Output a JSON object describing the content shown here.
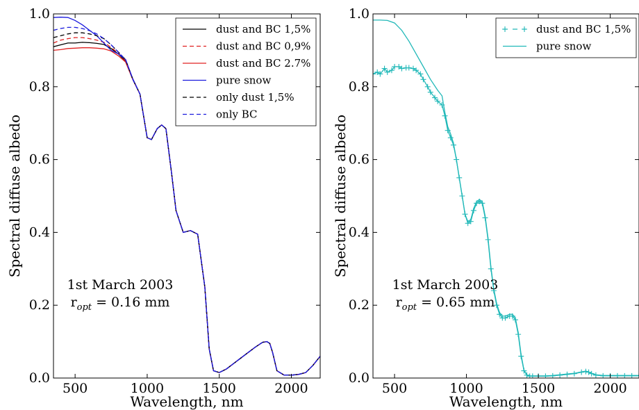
{
  "chart_data": [
    {
      "type": "line",
      "xlabel": "Wavelength, nm",
      "ylabel": "Spectral diffuse albedo",
      "xlim": [
        350,
        2200
      ],
      "ylim": [
        0,
        1.0
      ],
      "xticks": [
        500,
        1000,
        1500,
        2000
      ],
      "xtick_labels": [
        "500",
        "1000",
        "1500",
        "2000"
      ],
      "yticks": [
        0,
        0.2,
        0.4,
        0.6,
        0.8,
        1.0
      ],
      "ytick_labels": [
        "0.0",
        "0.2",
        "0.4",
        "0.6",
        "0.8",
        "1.0"
      ],
      "grid": false,
      "legend_position": "top-right",
      "annotation": {
        "line1": "1st March 2003",
        "line2_prefix": "r",
        "line2_sub": "opt",
        "line2_suffix": " = 0.16 mm"
      },
      "series": [
        {
          "name": "dust and BC 1,5%",
          "color": "#000000",
          "dash": "solid",
          "x": [
            350,
            400,
            450,
            500,
            550,
            600,
            650,
            700,
            750,
            800,
            850,
            900,
            950,
            1000,
            1030,
            1070,
            1100,
            1130,
            1170,
            1200,
            1250,
            1300,
            1350,
            1400,
            1430,
            1460,
            1500,
            1550,
            1600,
            1650,
            1700,
            1750,
            1800,
            1830,
            1850,
            1870,
            1900,
            1950,
            2000,
            2050,
            2100,
            2150,
            2200
          ],
          "y": [
            0.91,
            0.915,
            0.92,
            0.92,
            0.922,
            0.921,
            0.919,
            0.916,
            0.905,
            0.89,
            0.87,
            0.82,
            0.78,
            0.66,
            0.655,
            0.685,
            0.695,
            0.685,
            0.56,
            0.46,
            0.4,
            0.405,
            0.395,
            0.25,
            0.08,
            0.02,
            0.015,
            0.025,
            0.04,
            0.055,
            0.07,
            0.085,
            0.098,
            0.1,
            0.095,
            0.07,
            0.02,
            0.008,
            0.008,
            0.01,
            0.015,
            0.035,
            0.06
          ]
        },
        {
          "name": "dust and BC 0,9%",
          "color": "#e02020",
          "dash": "dashed",
          "x": [
            350,
            400,
            450,
            500,
            550,
            600,
            650,
            700,
            750,
            800,
            850,
            900,
            950,
            1000,
            1030,
            1070,
            1100,
            1130,
            1170,
            1200,
            1250,
            1300,
            1350,
            1400,
            1430,
            1460,
            1500,
            1550,
            1600,
            1650,
            1700,
            1750,
            1800,
            1830,
            1850,
            1870,
            1900,
            1950,
            2000,
            2050,
            2100,
            2150,
            2200
          ],
          "y": [
            0.92,
            0.928,
            0.932,
            0.935,
            0.935,
            0.932,
            0.928,
            0.922,
            0.908,
            0.892,
            0.872,
            0.82,
            0.78,
            0.66,
            0.655,
            0.685,
            0.695,
            0.685,
            0.56,
            0.46,
            0.4,
            0.405,
            0.395,
            0.25,
            0.08,
            0.02,
            0.015,
            0.025,
            0.04,
            0.055,
            0.07,
            0.085,
            0.098,
            0.1,
            0.095,
            0.07,
            0.02,
            0.008,
            0.008,
            0.01,
            0.015,
            0.035,
            0.06
          ]
        },
        {
          "name": "dust and BC 2.7%",
          "color": "#e02020",
          "dash": "solid",
          "x": [
            350,
            400,
            450,
            500,
            550,
            600,
            650,
            700,
            750,
            800,
            850,
            900,
            950,
            1000,
            1030,
            1070,
            1100,
            1130,
            1170,
            1200,
            1250,
            1300,
            1350,
            1400,
            1430,
            1460,
            1500,
            1550,
            1600,
            1650,
            1700,
            1750,
            1800,
            1830,
            1850,
            1870,
            1900,
            1950,
            2000,
            2050,
            2100,
            2150,
            2200
          ],
          "y": [
            0.9,
            0.902,
            0.905,
            0.906,
            0.907,
            0.907,
            0.906,
            0.904,
            0.898,
            0.885,
            0.868,
            0.82,
            0.78,
            0.66,
            0.655,
            0.685,
            0.695,
            0.685,
            0.56,
            0.46,
            0.4,
            0.405,
            0.395,
            0.25,
            0.08,
            0.02,
            0.015,
            0.025,
            0.04,
            0.055,
            0.07,
            0.085,
            0.098,
            0.1,
            0.095,
            0.07,
            0.02,
            0.008,
            0.008,
            0.01,
            0.015,
            0.035,
            0.06
          ]
        },
        {
          "name": "pure snow",
          "color": "#1a1add",
          "dash": "solid",
          "x": [
            350,
            400,
            450,
            500,
            550,
            600,
            650,
            700,
            750,
            800,
            850,
            900,
            950,
            1000,
            1030,
            1070,
            1100,
            1130,
            1170,
            1200,
            1250,
            1300,
            1350,
            1400,
            1430,
            1460,
            1500,
            1550,
            1600,
            1650,
            1700,
            1750,
            1800,
            1830,
            1850,
            1870,
            1900,
            1950,
            2000,
            2050,
            2100,
            2150,
            2200
          ],
          "y": [
            0.99,
            0.991,
            0.99,
            0.982,
            0.97,
            0.955,
            0.94,
            0.92,
            0.9,
            0.89,
            0.875,
            0.822,
            0.78,
            0.66,
            0.655,
            0.685,
            0.695,
            0.685,
            0.56,
            0.46,
            0.4,
            0.405,
            0.395,
            0.25,
            0.08,
            0.02,
            0.015,
            0.025,
            0.04,
            0.055,
            0.07,
            0.085,
            0.098,
            0.1,
            0.095,
            0.07,
            0.02,
            0.008,
            0.008,
            0.01,
            0.015,
            0.035,
            0.06
          ]
        },
        {
          "name": "only dust 1,5%",
          "color": "#000000",
          "dash": "dashed",
          "x": [
            350,
            400,
            450,
            500,
            550,
            600,
            650,
            700,
            750,
            800,
            850,
            900,
            950,
            1000,
            1030,
            1070,
            1100,
            1130,
            1170,
            1200,
            1250,
            1300,
            1350,
            1400,
            1430,
            1460,
            1500,
            1550,
            1600,
            1650,
            1700,
            1750,
            1800,
            1830,
            1850,
            1870,
            1900,
            1950,
            2000,
            2050,
            2100,
            2150,
            2200
          ],
          "y": [
            0.935,
            0.94,
            0.945,
            0.948,
            0.948,
            0.945,
            0.94,
            0.932,
            0.915,
            0.895,
            0.874,
            0.82,
            0.78,
            0.66,
            0.655,
            0.685,
            0.695,
            0.685,
            0.56,
            0.46,
            0.4,
            0.405,
            0.395,
            0.25,
            0.08,
            0.02,
            0.015,
            0.025,
            0.04,
            0.055,
            0.07,
            0.085,
            0.098,
            0.1,
            0.095,
            0.07,
            0.02,
            0.008,
            0.008,
            0.01,
            0.015,
            0.035,
            0.06
          ]
        },
        {
          "name": "only BC",
          "color": "#1a1add",
          "dash": "dashed",
          "x": [
            350,
            400,
            450,
            500,
            550,
            600,
            650,
            700,
            750,
            800,
            850,
            900,
            950,
            1000,
            1030,
            1070,
            1100,
            1130,
            1170,
            1200,
            1250,
            1300,
            1350,
            1400,
            1430,
            1460,
            1500,
            1550,
            1600,
            1650,
            1700,
            1750,
            1800,
            1830,
            1850,
            1870,
            1900,
            1950,
            2000,
            2050,
            2100,
            2150,
            2200
          ],
          "y": [
            0.955,
            0.96,
            0.963,
            0.963,
            0.96,
            0.954,
            0.945,
            0.932,
            0.915,
            0.895,
            0.874,
            0.82,
            0.78,
            0.66,
            0.655,
            0.685,
            0.695,
            0.685,
            0.56,
            0.46,
            0.4,
            0.405,
            0.395,
            0.25,
            0.08,
            0.02,
            0.015,
            0.025,
            0.04,
            0.055,
            0.07,
            0.085,
            0.098,
            0.1,
            0.095,
            0.07,
            0.02,
            0.008,
            0.008,
            0.01,
            0.015,
            0.035,
            0.06
          ]
        }
      ]
    },
    {
      "type": "line",
      "xlabel": "Wavelength, nm",
      "ylabel": "Spectral diffuse albedo",
      "xlim": [
        350,
        2200
      ],
      "ylim": [
        0,
        1.0
      ],
      "xticks": [
        500,
        1000,
        1500,
        2000
      ],
      "xtick_labels": [
        "500",
        "1000",
        "1500",
        "2000"
      ],
      "yticks": [
        0,
        0.2,
        0.4,
        0.6,
        0.8,
        1.0
      ],
      "ytick_labels": [
        "0.0",
        "0.2",
        "0.4",
        "0.6",
        "0.8",
        "1.0"
      ],
      "grid": false,
      "legend_position": "top-right",
      "annotation": {
        "line1": "1st March 2003",
        "line2_prefix": "r",
        "line2_sub": "opt",
        "line2_suffix": " = 0.65 mm"
      },
      "series": [
        {
          "name": "dust and BC 1,5%",
          "color": "#20b8b8",
          "dash": "solid",
          "marker": "plus",
          "x": [
            350,
            380,
            400,
            430,
            450,
            480,
            500,
            530,
            550,
            580,
            600,
            630,
            650,
            680,
            700,
            730,
            750,
            780,
            800,
            830,
            850,
            870,
            890,
            910,
            930,
            950,
            970,
            990,
            1010,
            1030,
            1050,
            1070,
            1090,
            1110,
            1130,
            1150,
            1170,
            1190,
            1210,
            1230,
            1250,
            1270,
            1300,
            1320,
            1340,
            1360,
            1380,
            1400,
            1420,
            1440,
            1460,
            1500,
            1550,
            1600,
            1650,
            1700,
            1750,
            1800,
            1830,
            1850,
            1870,
            1900,
            1950,
            2000,
            2050,
            2100,
            2150,
            2200
          ],
          "y": [
            0.835,
            0.84,
            0.835,
            0.85,
            0.84,
            0.845,
            0.855,
            0.855,
            0.85,
            0.852,
            0.852,
            0.85,
            0.845,
            0.835,
            0.82,
            0.8,
            0.785,
            0.77,
            0.76,
            0.75,
            0.72,
            0.68,
            0.66,
            0.64,
            0.6,
            0.55,
            0.5,
            0.45,
            0.425,
            0.43,
            0.46,
            0.48,
            0.485,
            0.48,
            0.44,
            0.38,
            0.3,
            0.24,
            0.2,
            0.175,
            0.165,
            0.165,
            0.17,
            0.17,
            0.16,
            0.12,
            0.06,
            0.02,
            0.008,
            0.005,
            0.005,
            0.005,
            0.005,
            0.006,
            0.008,
            0.01,
            0.012,
            0.016,
            0.018,
            0.016,
            0.012,
            0.008,
            0.006,
            0.006,
            0.006,
            0.006,
            0.006,
            0.006
          ]
        },
        {
          "name": "pure snow",
          "color": "#20b8b8",
          "dash": "solid",
          "x": [
            350,
            400,
            450,
            500,
            550,
            600,
            650,
            700,
            750,
            800,
            830,
            850,
            870,
            890,
            910,
            930,
            950,
            970,
            990,
            1010,
            1030,
            1050,
            1070,
            1090,
            1110,
            1130,
            1150,
            1170,
            1190,
            1210,
            1230,
            1250,
            1270,
            1300,
            1320,
            1340,
            1360,
            1380,
            1400,
            1420,
            1440,
            1460,
            1500,
            1550,
            1600,
            1650,
            1700,
            1750,
            1800,
            1830,
            1850,
            1870,
            1900,
            1950,
            2000,
            2050,
            2100,
            2150,
            2200
          ],
          "y": [
            0.983,
            0.983,
            0.982,
            0.975,
            0.955,
            0.925,
            0.89,
            0.855,
            0.82,
            0.79,
            0.775,
            0.73,
            0.69,
            0.67,
            0.645,
            0.6,
            0.55,
            0.5,
            0.45,
            0.43,
            0.435,
            0.465,
            0.485,
            0.49,
            0.485,
            0.445,
            0.385,
            0.305,
            0.245,
            0.205,
            0.18,
            0.17,
            0.17,
            0.175,
            0.175,
            0.165,
            0.125,
            0.065,
            0.022,
            0.009,
            0.006,
            0.006,
            0.006,
            0.006,
            0.007,
            0.009,
            0.011,
            0.013,
            0.017,
            0.019,
            0.017,
            0.013,
            0.009,
            0.007,
            0.007,
            0.007,
            0.007,
            0.007,
            0.007
          ]
        }
      ]
    }
  ]
}
